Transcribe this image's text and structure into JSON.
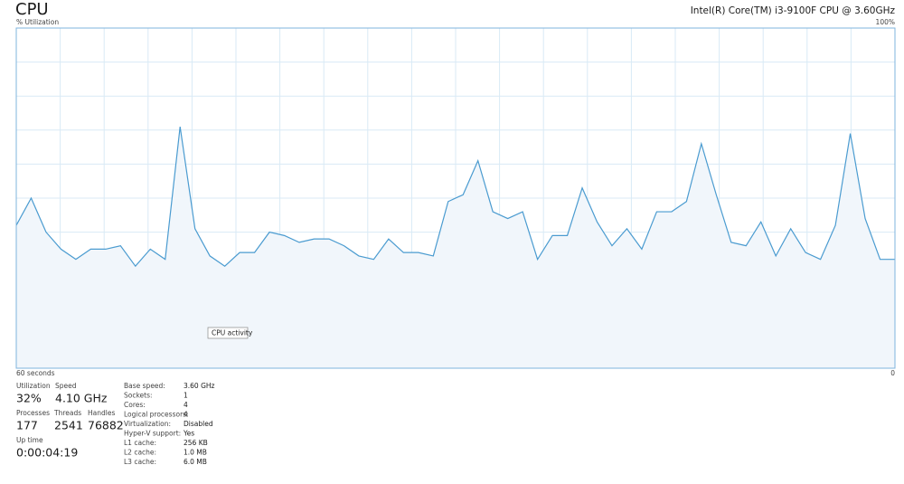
{
  "header": {
    "title": "CPU",
    "processor": "Intel(R) Core(TM) i3-9100F CPU @ 3.60GHz"
  },
  "chart_data": {
    "type": "area",
    "y_label": "% Utilization",
    "ylim": [
      0,
      100
    ],
    "yticks": [
      {
        "value": 100,
        "label": "100%"
      }
    ],
    "grid_step": 10,
    "xlim": [
      60,
      0
    ],
    "xticks": [
      {
        "value": 60,
        "label": "60 seconds"
      },
      0
    ],
    "x_grid_step": 3,
    "grid": true,
    "grid_color": "#d9eaf6",
    "border_color": "#7fb4de",
    "fill": "#f1f6fb",
    "series": [
      {
        "name": "CPU activity",
        "color": "#4a9bd0",
        "values": [
          42,
          50,
          40,
          35,
          32,
          35,
          35,
          36,
          30,
          35,
          32,
          71,
          41,
          33,
          30,
          34,
          34,
          40,
          39,
          37,
          38,
          38,
          36,
          33,
          32,
          38,
          34,
          34,
          33,
          49,
          51,
          61,
          46,
          44,
          46,
          32,
          39,
          39,
          53,
          43,
          36,
          41,
          35,
          46,
          46,
          49,
          66,
          51,
          37,
          36,
          43,
          33,
          41,
          34,
          32,
          42,
          69,
          44,
          32,
          32
        ]
      }
    ]
  },
  "stats": [
    {
      "label": "Utilization",
      "value": "32%"
    },
    {
      "label": "Speed",
      "value": "4.10 GHz"
    },
    {
      "label": "Processes",
      "value": "177"
    },
    {
      "label": "Threads",
      "value": "2541"
    },
    {
      "label": "Handles",
      "value": "76882"
    },
    {
      "label": "Up time",
      "value": "0:00:04:19"
    }
  ],
  "details": [
    {
      "label": "Base speed:",
      "value": "3.60 GHz"
    },
    {
      "label": "Sockets:",
      "value": "1"
    },
    {
      "label": "Cores:",
      "value": "4"
    },
    {
      "label": "Logical processors:",
      "value": "4"
    },
    {
      "label": "Virtualization:",
      "value": "Disabled"
    },
    {
      "label": "Hyper-V support:",
      "value": "Yes"
    },
    {
      "label": "L1 cache:",
      "value": "256 KB"
    },
    {
      "label": "L2 cache:",
      "value": "1.0 MB"
    },
    {
      "label": "L3 cache:",
      "value": "6.0 MB"
    }
  ]
}
